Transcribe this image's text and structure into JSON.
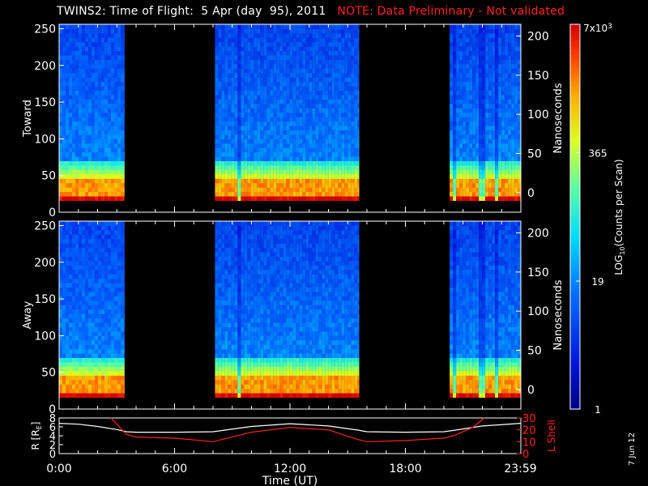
{
  "title": "TWINS2: Time of Flight:  5 Apr (day  95), 2011",
  "note": "NOTE: Data Preliminary - Not validated",
  "date_stamp": "7 Jun 12",
  "colors": {
    "background": "#000000",
    "axis": "#ffffff",
    "note": "#ff2020",
    "r_line": "#ffffff",
    "lshell_line": "#ff2020"
  },
  "chart_data": [
    {
      "type": "heatmap",
      "panel": "Toward",
      "ylabel": "Toward",
      "ylabel_right": "Nanoseconds",
      "ylim": [
        0,
        256
      ],
      "yticks": [
        0,
        50,
        100,
        150,
        200,
        250
      ],
      "ylim_right": [
        -25,
        215
      ],
      "yticks_right": [
        0,
        50,
        100,
        150,
        200
      ],
      "x_range_hours": [
        0,
        24
      ],
      "data_intervals_hours": [
        [
          0.0,
          3.4
        ],
        [
          8.1,
          15.6
        ],
        [
          20.3,
          24.0
        ]
      ],
      "dropout_hours": [
        9.3,
        20.45,
        21.9,
        22.7
      ],
      "peak_channel_range": [
        18,
        40
      ]
    },
    {
      "type": "heatmap",
      "panel": "Away",
      "ylabel": "Away",
      "ylabel_right": "Nanoseconds",
      "ylim": [
        0,
        256
      ],
      "yticks": [
        0,
        50,
        100,
        150,
        200,
        250
      ],
      "ylim_right": [
        -25,
        215
      ],
      "yticks_right": [
        0,
        50,
        100,
        150,
        200
      ],
      "x_range_hours": [
        0,
        24
      ],
      "data_intervals_hours": [
        [
          0.0,
          3.4
        ],
        [
          8.1,
          15.6
        ],
        [
          20.3,
          24.0
        ]
      ],
      "dropout_hours": [
        9.3,
        20.45,
        21.9,
        22.7
      ],
      "peak_channel_range": [
        18,
        40
      ]
    },
    {
      "type": "line",
      "ylabel": "R [R",
      "ylabel_sub": "E",
      "ylabel_close": "]",
      "ylabel_right": "L Shell",
      "xlabel": "Time (UT)",
      "xticks": [
        "0:00",
        "6:00",
        "12:00",
        "18:00",
        "23:59"
      ],
      "xtick_hours": [
        0,
        6,
        12,
        18,
        23.98
      ],
      "ylim": [
        0,
        8
      ],
      "yticks": [
        0,
        2,
        4,
        6,
        8
      ],
      "ylim_right": [
        0,
        30
      ],
      "yticks_right": [
        0,
        10,
        20,
        30
      ],
      "series": [
        {
          "axis": "left",
          "x": [
            0,
            1,
            2,
            3,
            3.5,
            4,
            6,
            8,
            10,
            12,
            14,
            15.5,
            16,
            18,
            20,
            20.5,
            22,
            24
          ],
          "y": [
            6.8,
            6.6,
            6.1,
            5.4,
            4.9,
            4.8,
            4.8,
            4.9,
            6.1,
            6.7,
            6.2,
            5.3,
            4.9,
            4.8,
            4.9,
            5.2,
            6.2,
            6.8
          ]
        },
        {
          "axis": "right",
          "x": [
            2.7,
            3.5,
            4,
            6,
            8,
            10,
            12,
            14,
            15.5,
            16,
            18,
            20,
            20.5,
            21.5,
            22.1
          ],
          "y": [
            30,
            16,
            14,
            13,
            10,
            18,
            22,
            20,
            12,
            10,
            11,
            13,
            15,
            22,
            30
          ]
        }
      ]
    },
    {
      "type": "colorbar",
      "label": "LOG",
      "label_sub": "10",
      "label_rest": "(Counts per Scan)",
      "tick_labels": [
        "1",
        "19",
        "365",
        "7x10"
      ],
      "tick_values": [
        1,
        19,
        365,
        7000
      ],
      "top_label_exponent": "3",
      "range": [
        1,
        7000
      ],
      "scale": "log"
    }
  ]
}
